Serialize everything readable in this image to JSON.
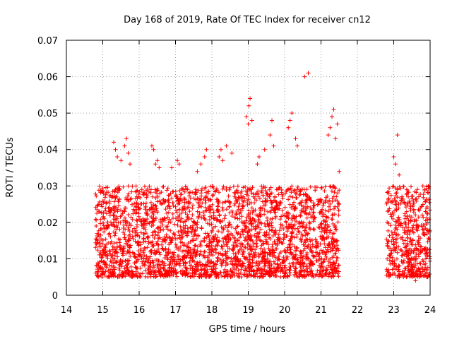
{
  "chart_data": {
    "type": "scatter",
    "title": "Day 168 of 2019, Rate Of TEC Index for receiver cn12",
    "xlabel": "GPS time / hours",
    "ylabel": "ROTI / TECUs",
    "xlim": [
      14,
      24
    ],
    "ylim": [
      0,
      0.07
    ],
    "xticks": [
      14,
      15,
      16,
      17,
      18,
      19,
      20,
      21,
      22,
      23,
      24
    ],
    "xtick_labels": [
      "14",
      "15",
      "16",
      "17",
      "18",
      "19",
      "20",
      "21",
      "22",
      "23",
      "24"
    ],
    "yticks": [
      0,
      0.01,
      0.02,
      0.03,
      0.04,
      0.05,
      0.06,
      0.07
    ],
    "ytick_labels": [
      "0",
      "0.01",
      "0.02",
      "0.03",
      "0.04",
      "0.05",
      "0.06",
      "0.07"
    ],
    "grid": true,
    "marker": "+",
    "color": "#ff0000",
    "series": [
      {
        "name": "ROTI",
        "segments": [
          {
            "x_start": 14.8,
            "x_end": 21.5,
            "y_low": 0.005,
            "y_high": 0.03
          },
          {
            "x_start": 22.8,
            "x_end": 24.0,
            "y_low": 0.005,
            "y_high": 0.03
          }
        ],
        "points": [
          [
            15.3,
            0.042
          ],
          [
            15.35,
            0.04
          ],
          [
            15.4,
            0.038
          ],
          [
            15.5,
            0.037
          ],
          [
            15.6,
            0.041
          ],
          [
            15.65,
            0.043
          ],
          [
            15.7,
            0.039
          ],
          [
            15.75,
            0.036
          ],
          [
            16.35,
            0.041
          ],
          [
            16.4,
            0.04
          ],
          [
            16.45,
            0.036
          ],
          [
            16.5,
            0.037
          ],
          [
            16.55,
            0.035
          ],
          [
            16.9,
            0.035
          ],
          [
            17.05,
            0.037
          ],
          [
            17.1,
            0.036
          ],
          [
            17.6,
            0.034
          ],
          [
            17.7,
            0.036
          ],
          [
            17.8,
            0.038
          ],
          [
            17.85,
            0.04
          ],
          [
            18.2,
            0.038
          ],
          [
            18.25,
            0.04
          ],
          [
            18.3,
            0.037
          ],
          [
            18.4,
            0.041
          ],
          [
            18.55,
            0.039
          ],
          [
            18.95,
            0.049
          ],
          [
            19.0,
            0.047
          ],
          [
            19.02,
            0.052
          ],
          [
            19.05,
            0.054
          ],
          [
            19.1,
            0.048
          ],
          [
            19.25,
            0.036
          ],
          [
            19.3,
            0.038
          ],
          [
            19.45,
            0.04
          ],
          [
            19.6,
            0.044
          ],
          [
            19.65,
            0.048
          ],
          [
            19.7,
            0.041
          ],
          [
            20.1,
            0.046
          ],
          [
            20.15,
            0.048
          ],
          [
            20.2,
            0.05
          ],
          [
            20.3,
            0.043
          ],
          [
            20.35,
            0.041
          ],
          [
            20.55,
            0.06
          ],
          [
            20.65,
            0.061
          ],
          [
            21.2,
            0.044
          ],
          [
            21.25,
            0.046
          ],
          [
            21.3,
            0.049
          ],
          [
            21.35,
            0.051
          ],
          [
            21.4,
            0.043
          ],
          [
            21.45,
            0.047
          ],
          [
            21.5,
            0.034
          ],
          [
            23.0,
            0.038
          ],
          [
            23.05,
            0.036
          ],
          [
            23.1,
            0.044
          ],
          [
            23.15,
            0.033
          ],
          [
            23.4,
            0.027
          ],
          [
            23.8,
            0.03
          ],
          [
            23.85,
            0.029
          ],
          [
            23.9,
            0.026
          ],
          [
            23.6,
            0.004
          ]
        ]
      }
    ]
  }
}
